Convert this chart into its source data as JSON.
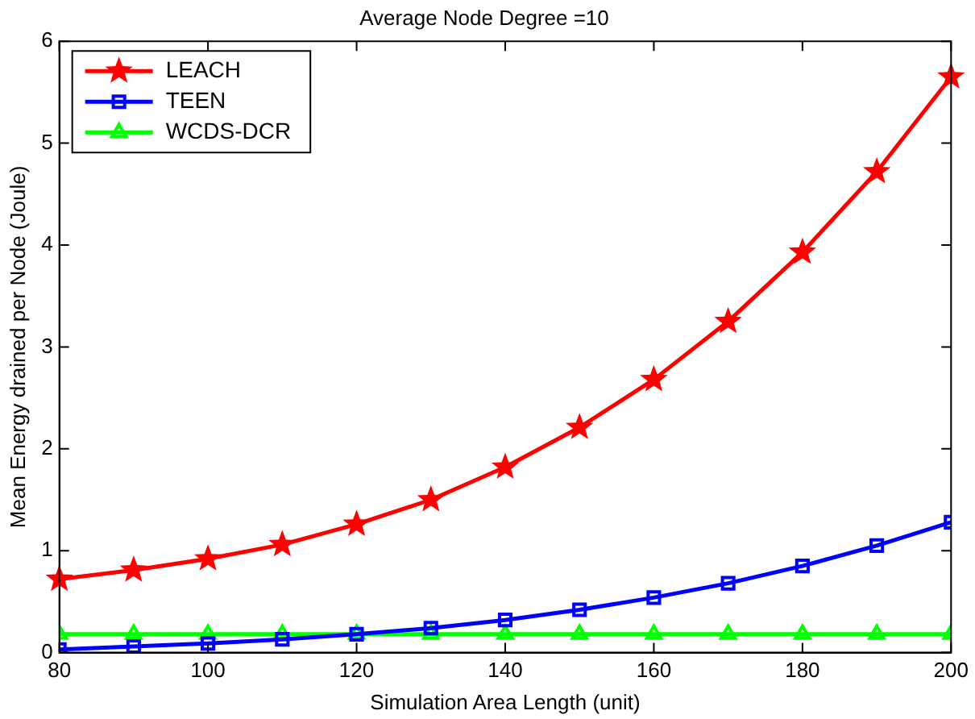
{
  "chart_data": {
    "type": "line",
    "title": "Average Node Degree =10",
    "xlabel": "Simulation Area Length (unit)",
    "ylabel": "Mean Energy drained per Node (Joule)",
    "x": [
      80,
      90,
      100,
      110,
      120,
      130,
      140,
      150,
      160,
      170,
      180,
      190,
      200
    ],
    "series": [
      {
        "name": "LEACH",
        "color": "#ff0000",
        "marker": "star",
        "values": [
          0.72,
          0.81,
          0.92,
          1.06,
          1.26,
          1.5,
          1.82,
          2.21,
          2.68,
          3.25,
          3.93,
          4.72,
          5.65
        ]
      },
      {
        "name": "TEEN",
        "color": "#0000ff",
        "marker": "square",
        "values": [
          0.03,
          0.06,
          0.09,
          0.13,
          0.18,
          0.24,
          0.32,
          0.42,
          0.54,
          0.68,
          0.85,
          1.05,
          1.28
        ]
      },
      {
        "name": "WCDS-DCR",
        "color": "#00ff00",
        "marker": "triangle",
        "values": [
          0.18,
          0.18,
          0.18,
          0.18,
          0.18,
          0.18,
          0.18,
          0.18,
          0.18,
          0.18,
          0.18,
          0.18,
          0.18
        ]
      }
    ],
    "xlim": [
      80,
      200
    ],
    "xticks": [
      80,
      100,
      120,
      140,
      160,
      180,
      200
    ],
    "ylim": [
      0,
      6
    ],
    "yticks": [
      0,
      1,
      2,
      3,
      4,
      5,
      6
    ],
    "grid": false,
    "legend": "top left",
    "line_style": "solid"
  }
}
